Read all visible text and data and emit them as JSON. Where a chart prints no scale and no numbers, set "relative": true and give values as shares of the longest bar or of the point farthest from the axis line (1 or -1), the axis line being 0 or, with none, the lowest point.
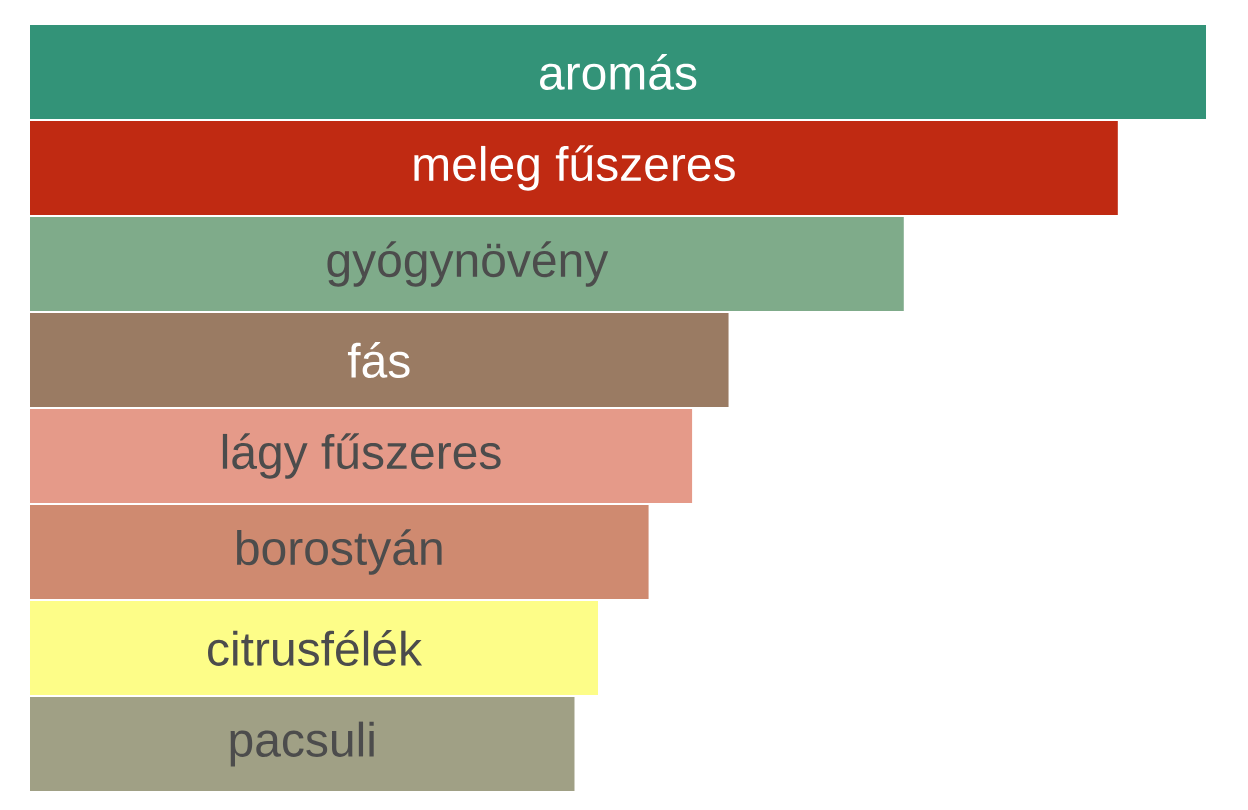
{
  "chart_data": {
    "type": "bar",
    "orientation": "horizontal",
    "relative": true,
    "categories": [
      "aromás",
      "meleg fűszeres",
      "gyógynövény",
      "fás",
      "lágy fűszeres",
      "borostyán",
      "citrusfélék",
      "pacsuli"
    ],
    "values": [
      1,
      0.925,
      0.743,
      0.594,
      0.563,
      0.526,
      0.483,
      0.463
    ],
    "colors": [
      "#339378",
      "#c02a12",
      "#7fab8a",
      "#9a7b63",
      "#e59a89",
      "#cf8a70",
      "#fdfd88",
      "#a0a085"
    ]
  }
}
